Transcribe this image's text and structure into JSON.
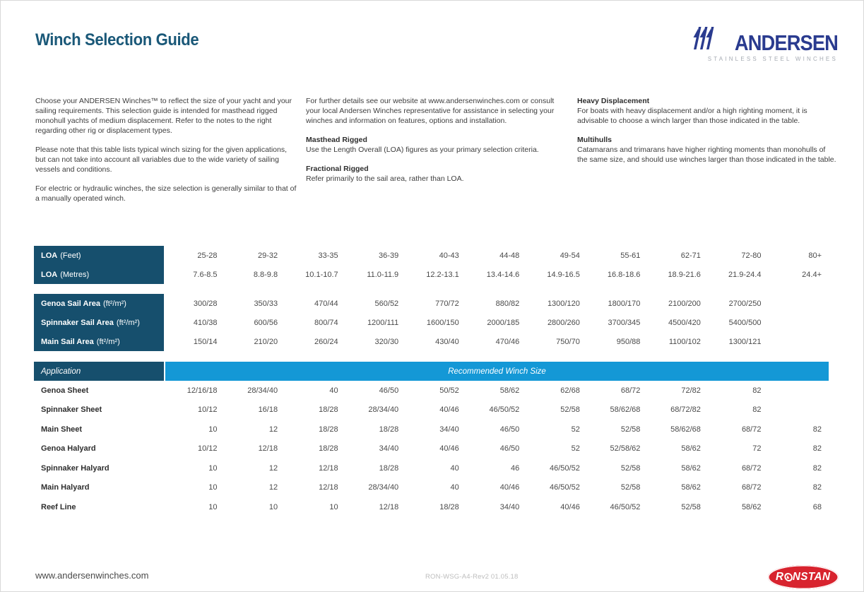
{
  "title": "Winch Selection Guide",
  "brand": {
    "name": "ANDERSEN",
    "tagline": "STAINLESS STEEL WINCHES"
  },
  "colors": {
    "title_blue": "#1A5878",
    "header_dark_blue": "#164F6D",
    "band_cyan": "#1498D6",
    "brand_navy": "#2A3B8F",
    "ronstan_red": "#D8232E"
  },
  "intro": {
    "col1_p1": "Choose your ANDERSEN Winches™ to reflect the size of your yacht and your sailing requirements. This selection guide is intended for masthead rigged monohull yachts of medium displacement. Refer to the notes to the right regarding other rig or displacement types.",
    "col1_p2": "Please note that this table lists typical winch sizing for the given applications, but can not take into account all variables due to the wide variety of sailing vessels and conditions.",
    "col1_p3": "For electric or hydraulic winches, the size selection is generally similar to that of a manually operated winch.",
    "col2_p1": "For further details see our website at www.andersenwinches.com or consult your local Andersen Winches representative for assistance in selecting your winches and information on features, options and installation.",
    "col2_h1": "Masthead Rigged",
    "col2_t1": "Use the Length Overall (LOA) figures as your primary selection criteria.",
    "col2_h2": "Fractional Rigged",
    "col2_t2": "Refer primarily to the sail area, rather than LOA.",
    "col3_h1": "Heavy Displacement",
    "col3_t1": "For boats with heavy displacement and/or a high righting moment, it is advisable to choose a winch larger than those indicated in the table.",
    "col3_h2": "Multihulls",
    "col3_t2": "Catamarans and trimarans have higher righting moments than monohulls of the same size, and should use winches larger than those indicated in the table."
  },
  "loa_table": {
    "rows": [
      {
        "label_bold": "LOA",
        "label_rest": "(Feet)",
        "values": [
          "25-28",
          "29-32",
          "33-35",
          "36-39",
          "40-43",
          "44-48",
          "49-54",
          "55-61",
          "62-71",
          "72-80",
          "80+"
        ]
      },
      {
        "label_bold": "LOA",
        "label_rest": "(Metres)",
        "values": [
          "7.6-8.5",
          "8.8-9.8",
          "10.1-10.7",
          "11.0-11.9",
          "12.2-13.1",
          "13.4-14.6",
          "14.9-16.5",
          "16.8-18.6",
          "18.9-21.6",
          "21.9-24.4",
          "24.4+"
        ]
      }
    ]
  },
  "sail_table": {
    "rows": [
      {
        "label_bold": "Genoa Sail Area",
        "label_rest": "(ft²/m²)",
        "values": [
          "300/28",
          "350/33",
          "470/44",
          "560/52",
          "770/72",
          "880/82",
          "1300/120",
          "1800/170",
          "2100/200",
          "2700/250",
          ""
        ]
      },
      {
        "label_bold": "Spinnaker Sail Area",
        "label_rest": "(ft²/m²)",
        "values": [
          "410/38",
          "600/56",
          "800/74",
          "1200/111",
          "1600/150",
          "2000/185",
          "2800/260",
          "3700/345",
          "4500/420",
          "5400/500",
          ""
        ]
      },
      {
        "label_bold": "Main Sail Area",
        "label_rest": "(ft²/m²)",
        "values": [
          "150/14",
          "210/20",
          "260/24",
          "320/30",
          "430/40",
          "470/46",
          "750/70",
          "950/88",
          "1100/102",
          "1300/121",
          ""
        ]
      }
    ]
  },
  "app_table": {
    "header": {
      "application": "Application",
      "recommended": "Recommended Winch Size"
    },
    "rows": [
      {
        "label": "Genoa Sheet",
        "values": [
          "12/16/18",
          "28/34/40",
          "40",
          "46/50",
          "50/52",
          "58/62",
          "62/68",
          "68/72",
          "72/82",
          "82",
          ""
        ]
      },
      {
        "label": "Spinnaker Sheet",
        "values": [
          "10/12",
          "16/18",
          "18/28",
          "28/34/40",
          "40/46",
          "46/50/52",
          "52/58",
          "58/62/68",
          "68/72/82",
          "82",
          ""
        ]
      },
      {
        "label": "Main Sheet",
        "values": [
          "10",
          "12",
          "18/28",
          "18/28",
          "34/40",
          "46/50",
          "52",
          "52/58",
          "58/62/68",
          "68/72",
          "82"
        ]
      },
      {
        "label": "Genoa Halyard",
        "values": [
          "10/12",
          "12/18",
          "18/28",
          "34/40",
          "40/46",
          "46/50",
          "52",
          "52/58/62",
          "58/62",
          "72",
          "82"
        ]
      },
      {
        "label": "Spinnaker Halyard",
        "values": [
          "10",
          "12",
          "12/18",
          "18/28",
          "40",
          "46",
          "46/50/52",
          "52/58",
          "58/62",
          "68/72",
          "82"
        ]
      },
      {
        "label": "Main Halyard",
        "values": [
          "10",
          "12",
          "12/18",
          "28/34/40",
          "40",
          "40/46",
          "46/50/52",
          "52/58",
          "58/62",
          "68/72",
          "82"
        ]
      },
      {
        "label": "Reef Line",
        "values": [
          "10",
          "10",
          "10",
          "12/18",
          "18/28",
          "34/40",
          "40/46",
          "46/50/52",
          "52/58",
          "58/62",
          "68"
        ]
      }
    ]
  },
  "footer": {
    "website": "www.andersenwinches.com",
    "doc_ref": "RON-WSG-A4-Rev2 01.05.18",
    "ronstan_left": "R",
    "ronstan_right": "NSTAN"
  }
}
